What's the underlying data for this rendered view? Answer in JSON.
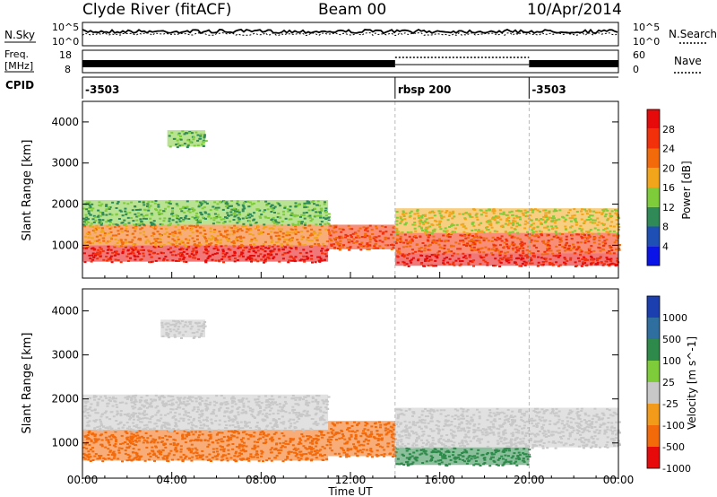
{
  "header": {
    "station": "Clyde River (fitACF)",
    "beam": "Beam 00",
    "date": "10/Apr/2014"
  },
  "top_panels": {
    "nsky_label": "N.Sky",
    "nsearch_label": "N.Search",
    "noise_ticks": [
      "10^5",
      "10^0"
    ],
    "freq_label": "Freq.",
    "freq_unit": "[MHz]",
    "freq_ticks": [
      "18",
      "8"
    ],
    "nave_label": "Nave",
    "nave_ticks": [
      "60",
      "0"
    ],
    "cpid_label": "CPID",
    "cpid_segments": [
      {
        "label": "-3503",
        "start": 0.0,
        "end": 14.0
      },
      {
        "label": "rbsp 200",
        "start": 14.0,
        "end": 20.0
      },
      {
        "label": "-3503",
        "start": 20.0,
        "end": 24.0
      }
    ]
  },
  "chart_data": [
    {
      "type": "heatmap",
      "title": "",
      "xlabel": "",
      "ylabel": "Slant Range [km]",
      "xlim": [
        0,
        24
      ],
      "ylim": [
        200,
        4500
      ],
      "y_ticks": [
        1000,
        2000,
        3000,
        4000
      ],
      "colorbar": {
        "label": "Power [dB]",
        "ticks": [
          "4",
          "8",
          "12",
          "16",
          "20",
          "24",
          "28"
        ],
        "colors": [
          "#0a14e6",
          "#1e4fb4",
          "#2f8a57",
          "#7fcc3a",
          "#f2a51a",
          "#f26a0a",
          "#f2300a",
          "#e60a0a"
        ]
      },
      "regions": [
        {
          "t0": 0.0,
          "t1": 11.0,
          "r0": 600,
          "r1": 1000,
          "level": 28
        },
        {
          "t0": 0.0,
          "t1": 11.0,
          "r0": 1000,
          "r1": 1500,
          "level": 20
        },
        {
          "t0": 0.0,
          "t1": 11.0,
          "r0": 1500,
          "r1": 2100,
          "level": 12
        },
        {
          "t0": 11.0,
          "t1": 14.0,
          "r0": 900,
          "r1": 1500,
          "level": 24
        },
        {
          "t0": 14.0,
          "t1": 24.0,
          "r0": 500,
          "r1": 800,
          "level": 28
        },
        {
          "t0": 14.0,
          "t1": 24.0,
          "r0": 800,
          "r1": 1300,
          "level": 24
        },
        {
          "t0": 14.0,
          "t1": 24.0,
          "r0": 1300,
          "r1": 1900,
          "level": 16
        },
        {
          "t0": 3.8,
          "t1": 5.5,
          "r0": 3400,
          "r1": 3800,
          "level": 12
        }
      ]
    },
    {
      "type": "heatmap",
      "title": "",
      "xlabel": "Time UT",
      "ylabel": "Slant Range [km]",
      "xlim": [
        0,
        24
      ],
      "ylim": [
        200,
        4500
      ],
      "x_ticks": [
        "00:00",
        "04:00",
        "08:00",
        "12:00",
        "16:00",
        "20:00",
        "00:00"
      ],
      "y_ticks": [
        1000,
        2000,
        3000,
        4000
      ],
      "colorbar": {
        "label": "Velocity [m s^-1]",
        "ticks": [
          "1000",
          "500",
          "100",
          "25",
          "-25",
          "-100",
          "-500",
          "-1000"
        ],
        "colors": [
          "#1c3fb0",
          "#2f6fa0",
          "#2e8a4a",
          "#7fcc3a",
          "#c8c8c8",
          "#f29a1a",
          "#f26a0a",
          "#e60a0a"
        ]
      },
      "regions": [
        {
          "t0": 0.0,
          "t1": 11.0,
          "r0": 600,
          "r1": 1300,
          "level": -300
        },
        {
          "t0": 0.0,
          "t1": 11.0,
          "r0": 1300,
          "r1": 2100,
          "level": 0
        },
        {
          "t0": 11.0,
          "t1": 14.0,
          "r0": 700,
          "r1": 1500,
          "level": -300
        },
        {
          "t0": 14.0,
          "t1": 20.0,
          "r0": 500,
          "r1": 900,
          "level": 150
        },
        {
          "t0": 14.0,
          "t1": 24.0,
          "r0": 900,
          "r1": 1800,
          "level": 0
        },
        {
          "t0": 3.5,
          "t1": 5.5,
          "r0": 3400,
          "r1": 3800,
          "level": 0
        }
      ]
    }
  ]
}
